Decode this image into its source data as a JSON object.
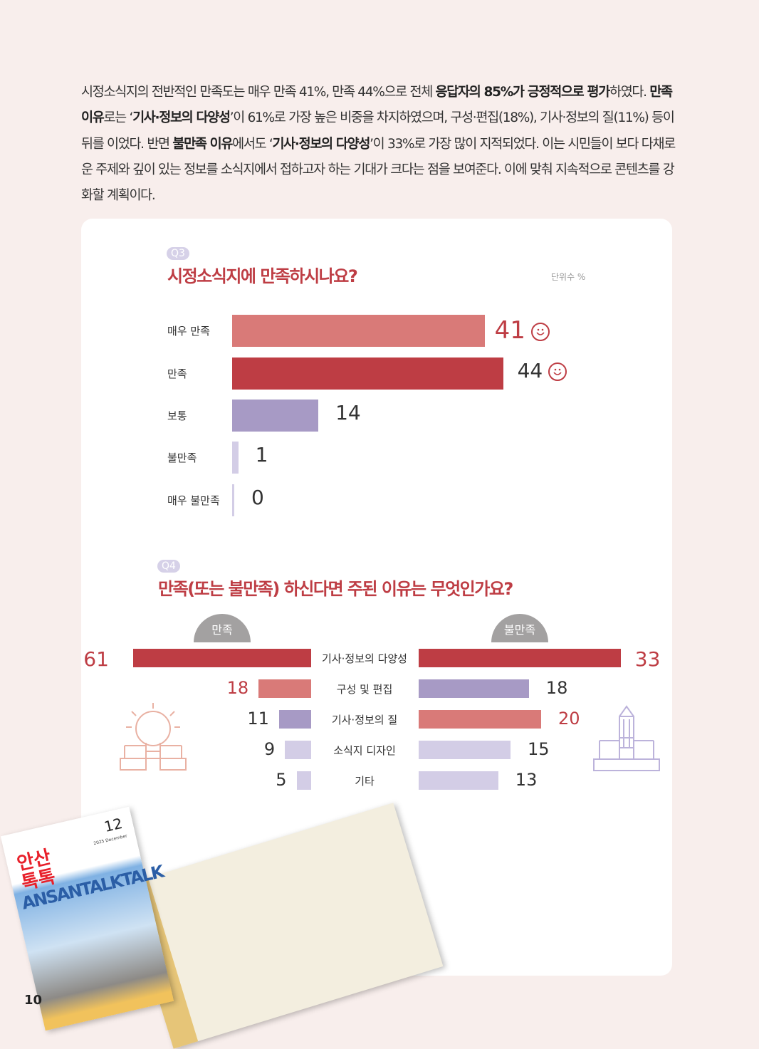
{
  "paragraph": {
    "l1a": "시정소식지의 전반적인 만족도는 매우 만족 41%, 만족 44%으로 전체 ",
    "l1b": "응답자의 85%가 긍정적으로 평가",
    "l1c": "하였다.",
    "l2a": "만족 이유",
    "l2b": "로는 ‘",
    "l2c": "기사·정보의 다양성",
    "l2d": "’이 61%로 가장 높은 비중을 차지하였으며, 구성·편집(18%), 기사·정보의 질(11%) 등이 뒤를 이었다. 반면 ",
    "l3a": "불만족 이유",
    "l3b": "에서도 ‘",
    "l3c": "기사·정보의 다양성",
    "l3d": "’이 33%로 가장 많이 지적되었다. 이는 시민들이 보다 다채로운 주제와 깊이 있는 정보를 소식지에서 접하고자 하는 기대가 크다는 점을 보여준다. 이에 맞춰 지속적으로 콘텐츠를 강화할 계획이다."
  },
  "page_number": "10",
  "magazine": {
    "title": "안산톡톡",
    "subtitle": "ANSANTALKTALK",
    "issue": "12",
    "date": "2025 December"
  },
  "chart_data": [
    {
      "type": "bar",
      "tag": "Q3",
      "title": "시정소식지에 만족하시나요?",
      "unit": "단위수 %",
      "categories": [
        "매우 만족",
        "만족",
        "보통",
        "불만족",
        "매우 불만족"
      ],
      "values": [
        41,
        44,
        14,
        1,
        0
      ],
      "colors": [
        "#d97a78",
        "#be3d44",
        "#a79ac5",
        "#d3cde6",
        "#d3cde6"
      ],
      "value_colors": [
        "#be3d44",
        "#333333",
        "#333333",
        "#333333",
        "#333333"
      ],
      "smiley": [
        true,
        true,
        false,
        false,
        false
      ]
    },
    {
      "type": "bar",
      "tag": "Q4",
      "title": "만족(또는 불만족) 하신다면 주된 이유는 무엇인가요?",
      "categories": [
        "기사·정보의 다양성",
        "구성 및 편집",
        "기사·정보의 질",
        "소식지 디자인",
        "기타"
      ],
      "series": [
        {
          "name": "만족",
          "values": [
            61,
            18,
            11,
            9,
            5
          ],
          "colors": [
            "#be3d44",
            "#d97a78",
            "#a79ac5",
            "#d3cde6",
            "#d3cde6"
          ],
          "value_colors": [
            "#be3d44",
            "#be3d44",
            "#333333",
            "#333333",
            "#333333"
          ]
        },
        {
          "name": "불만족",
          "values": [
            33,
            18,
            20,
            15,
            13
          ],
          "colors": [
            "#be3d44",
            "#a79ac5",
            "#d97a78",
            "#d3cde6",
            "#d3cde6"
          ],
          "value_colors": [
            "#be3d44",
            "#333333",
            "#be3d44",
            "#333333",
            "#333333"
          ]
        }
      ]
    }
  ]
}
